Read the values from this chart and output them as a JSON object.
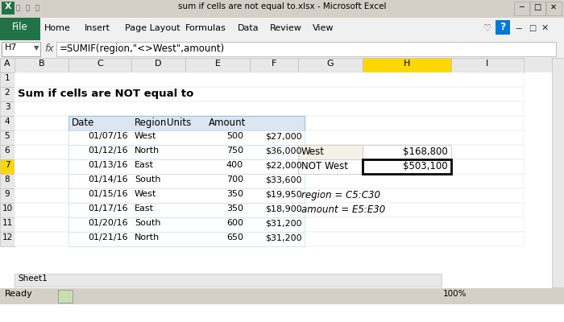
{
  "title_bar": "sum if cells are not equal to.xlsx - Microsoft Excel",
  "cell_ref": "H7",
  "formula": "=SUMIF(region,\"<>West\",amount)",
  "heading": "Sum if cells are NOT equal to",
  "col_headers": [
    "Date",
    "Region",
    "Units",
    "Amount"
  ],
  "rows": [
    [
      "01/07/16",
      "West",
      "500",
      "$27,000"
    ],
    [
      "01/12/16",
      "North",
      "750",
      "$36,000"
    ],
    [
      "01/13/16",
      "East",
      "400",
      "$22,000"
    ],
    [
      "01/14/16",
      "South",
      "700",
      "$33,600"
    ],
    [
      "01/15/16",
      "West",
      "350",
      "$19,950"
    ],
    [
      "01/17/16",
      "East",
      "350",
      "$18,900"
    ],
    [
      "01/20/16",
      "South",
      "600",
      "$31,200"
    ],
    [
      "01/21/16",
      "North",
      "650",
      "$31,200"
    ]
  ],
  "side_labels": [
    "West",
    "NOT West"
  ],
  "side_values": [
    "$168,800",
    "$503,100"
  ],
  "note1": "region = C5:C30",
  "note2": "amount = E5:E30",
  "col_letters": [
    "A",
    "B",
    "C",
    "D",
    "E",
    "F",
    "G",
    "H",
    "I"
  ],
  "row_numbers": [
    "1",
    "2",
    "3",
    "4",
    "5",
    "6",
    "7",
    "8",
    "9",
    "10",
    "11",
    "12"
  ],
  "bg_color": "#ffffff",
  "title_bar_bg": "#d4d0c8",
  "ribbon_file_bg": "#217346",
  "ribbon_bg": "#f0f0f0",
  "formula_bar_bg": "#ffffff",
  "header_col_bg": "#e8e8e8",
  "header_row_bg": "#e8e8e8",
  "table_header_bg": "#dce6f1",
  "selected_col_bg": "#ffd700",
  "row7_bg": "#fff2cc",
  "cell_border": "#c0c0c0",
  "table_border": "#9dc3e6",
  "side_west_bg": "#f2f2e6",
  "side_border": "#000000"
}
